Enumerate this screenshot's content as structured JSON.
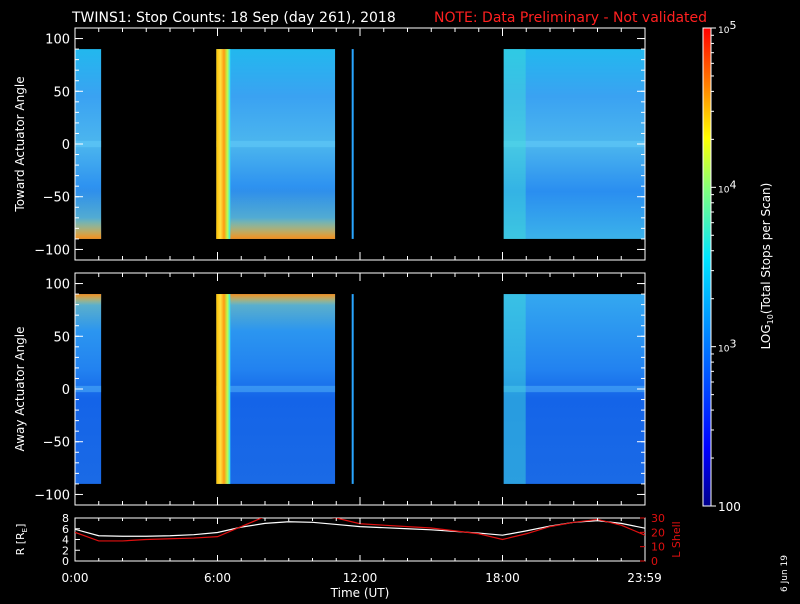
{
  "title": "TWINS1: Stop Counts: 18 Sep (day 261), 2018",
  "note": "NOTE: Data Preliminary - Not validated",
  "colors": {
    "background": "#000000",
    "axes": "#ffffff",
    "note": "#ff2020",
    "lshell": "#e01010",
    "radius": "#ffffff"
  },
  "colorbar": {
    "label": "LOG10(Total Stops per Scan)",
    "label_main": "LOG",
    "label_sub": "10",
    "label_rest": "(Total Stops per Scan)",
    "scale": "log",
    "range": [
      100,
      100000
    ],
    "ticks": [
      {
        "value": 100000,
        "base": "10",
        "exp": "5"
      },
      {
        "value": 10000,
        "base": "10",
        "exp": "4"
      },
      {
        "value": 1000,
        "base": "10",
        "exp": "3"
      },
      {
        "value": 100,
        "text": "100"
      }
    ]
  },
  "date_stamp": "6 Jun 19",
  "chart_data": [
    {
      "type": "heatmap",
      "ylabel": "Toward Actuator Angle",
      "ylim": [
        -110,
        110
      ],
      "yticks": [
        "100",
        "50",
        "0",
        "−50",
        "−100"
      ],
      "ytick_values": [
        100,
        50,
        0,
        -50,
        -100
      ],
      "data_angle_range": [
        -90,
        90
      ],
      "xlim_hours": [
        0,
        24
      ],
      "coverage_hours": [
        [
          0.0,
          1.1
        ],
        [
          5.95,
          10.95
        ],
        [
          11.65,
          11.72
        ],
        [
          18.05,
          24.0
        ]
      ],
      "typical_counts": 1000
    },
    {
      "type": "heatmap",
      "ylabel": "Away Actuator Angle",
      "ylim": [
        -110,
        110
      ],
      "yticks": [
        "100",
        "50",
        "0",
        "−50",
        "−100"
      ],
      "ytick_values": [
        100,
        50,
        0,
        -50,
        -100
      ],
      "data_angle_range": [
        -90,
        90
      ],
      "xlim_hours": [
        0,
        24
      ],
      "coverage_hours": [
        [
          0.0,
          1.1
        ],
        [
          5.95,
          10.95
        ],
        [
          11.65,
          11.72
        ],
        [
          18.05,
          24.0
        ]
      ],
      "typical_counts": 1000
    },
    {
      "type": "line",
      "xlabel": "Time (UT)",
      "xticks": [
        "0:00",
        "6:00",
        "12:00",
        "18:00",
        "23:59"
      ],
      "xtick_hours": [
        0,
        6,
        12,
        18,
        23.98
      ],
      "ylabel": "R [RE]",
      "ylabel_main": "R [R",
      "ylabel_sub": "E",
      "ylabel_end": "]",
      "ylim": [
        0,
        8
      ],
      "yticks": [
        "8",
        "6",
        "4",
        "2",
        "0"
      ],
      "ytick_values": [
        8,
        6,
        4,
        2,
        0
      ],
      "y2label": "L Shell",
      "y2lim": [
        0,
        30
      ],
      "y2ticks": [
        "30",
        "20",
        "10",
        "0"
      ],
      "y2tick_values": [
        30,
        20,
        10,
        0
      ],
      "series": [
        {
          "name": "R [RE]",
          "axis": "left",
          "x": [
            0,
            1,
            2,
            3,
            4,
            5,
            6,
            7,
            8,
            9,
            10,
            11,
            12,
            13,
            14,
            15,
            16,
            17,
            18,
            19,
            20,
            21,
            22,
            23,
            24
          ],
          "y": [
            5.9,
            4.7,
            4.6,
            4.6,
            4.7,
            4.9,
            5.3,
            6.3,
            7.0,
            7.3,
            7.2,
            6.8,
            6.4,
            6.2,
            6.0,
            5.8,
            5.5,
            5.2,
            4.8,
            5.6,
            6.5,
            7.2,
            7.5,
            7.0,
            6.1
          ]
        },
        {
          "name": "L Shell",
          "axis": "right",
          "x": [
            0,
            1,
            2,
            3,
            4,
            5,
            6,
            7,
            8,
            9,
            10,
            11,
            12,
            13,
            14,
            15,
            16,
            17,
            18,
            19,
            20,
            21,
            22,
            23,
            24
          ],
          "y": [
            20,
            14,
            14,
            15,
            15.5,
            16,
            17,
            24,
            31,
            32,
            32,
            30,
            26,
            25,
            24,
            23,
            21,
            19,
            15,
            19,
            24,
            27,
            29,
            25,
            18
          ]
        }
      ]
    }
  ]
}
